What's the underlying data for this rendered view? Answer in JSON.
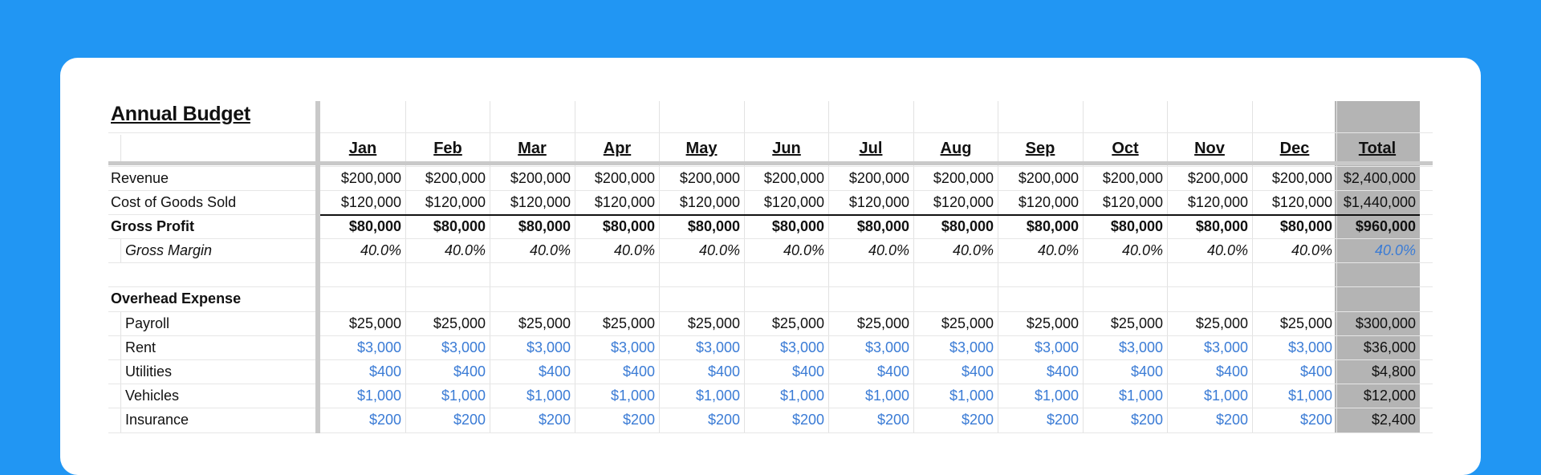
{
  "sheet": {
    "title": "Annual Budget",
    "months": [
      "Jan",
      "Feb",
      "Mar",
      "Apr",
      "May",
      "Jun",
      "Jul",
      "Aug",
      "Sep",
      "Oct",
      "Nov",
      "Dec"
    ],
    "total_header": "Total",
    "rows": [
      {
        "label": "Revenue",
        "style": "normal",
        "values": [
          "$200,000",
          "$200,000",
          "$200,000",
          "$200,000",
          "$200,000",
          "$200,000",
          "$200,000",
          "$200,000",
          "$200,000",
          "$200,000",
          "$200,000",
          "$200,000"
        ],
        "total": "$2,400,000"
      },
      {
        "label": "Cost of Goods Sold",
        "style": "normal",
        "values": [
          "$120,000",
          "$120,000",
          "$120,000",
          "$120,000",
          "$120,000",
          "$120,000",
          "$120,000",
          "$120,000",
          "$120,000",
          "$120,000",
          "$120,000",
          "$120,000"
        ],
        "total": "$1,440,000"
      },
      {
        "label": "Gross Profit",
        "style": "bold",
        "values": [
          "$80,000",
          "$80,000",
          "$80,000",
          "$80,000",
          "$80,000",
          "$80,000",
          "$80,000",
          "$80,000",
          "$80,000",
          "$80,000",
          "$80,000",
          "$80,000"
        ],
        "total": "$960,000"
      },
      {
        "label": "Gross Margin",
        "style": "italic",
        "values": [
          "40.0%",
          "40.0%",
          "40.0%",
          "40.0%",
          "40.0%",
          "40.0%",
          "40.0%",
          "40.0%",
          "40.0%",
          "40.0%",
          "40.0%",
          "40.0%"
        ],
        "total": "40.0%"
      },
      {
        "label": "",
        "style": "blank",
        "values": [],
        "total": ""
      },
      {
        "label": "Overhead Expense",
        "style": "section",
        "values": [],
        "total": ""
      },
      {
        "label": "Payroll",
        "style": "sub",
        "values": [
          "$25,000",
          "$25,000",
          "$25,000",
          "$25,000",
          "$25,000",
          "$25,000",
          "$25,000",
          "$25,000",
          "$25,000",
          "$25,000",
          "$25,000",
          "$25,000"
        ],
        "total": "$300,000"
      },
      {
        "label": "Rent",
        "style": "sub-blue",
        "values": [
          "$3,000",
          "$3,000",
          "$3,000",
          "$3,000",
          "$3,000",
          "$3,000",
          "$3,000",
          "$3,000",
          "$3,000",
          "$3,000",
          "$3,000",
          "$3,000"
        ],
        "total": "$36,000"
      },
      {
        "label": "Utilities",
        "style": "sub-blue",
        "values": [
          "$400",
          "$400",
          "$400",
          "$400",
          "$400",
          "$400",
          "$400",
          "$400",
          "$400",
          "$400",
          "$400",
          "$400"
        ],
        "total": "$4,800"
      },
      {
        "label": "Vehicles",
        "style": "sub-blue",
        "values": [
          "$1,000",
          "$1,000",
          "$1,000",
          "$1,000",
          "$1,000",
          "$1,000",
          "$1,000",
          "$1,000",
          "$1,000",
          "$1,000",
          "$1,000",
          "$1,000"
        ],
        "total": "$12,000"
      },
      {
        "label": "Insurance",
        "style": "sub-blue",
        "values": [
          "$200",
          "$200",
          "$200",
          "$200",
          "$200",
          "$200",
          "$200",
          "$200",
          "$200",
          "$200",
          "$200",
          "$200"
        ],
        "total": "$2,400"
      }
    ]
  },
  "colors": {
    "background": "#2196f3",
    "card": "#ffffff",
    "input_blue": "#3a7bd5",
    "total_column": "#b4b4b4"
  }
}
